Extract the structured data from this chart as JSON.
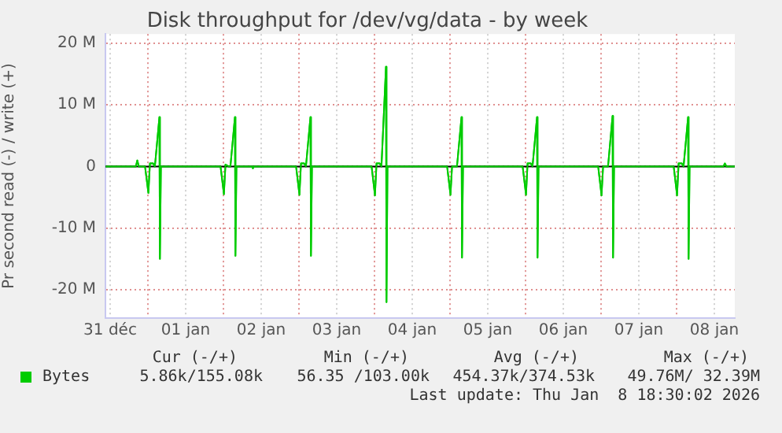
{
  "chart_data": {
    "type": "line",
    "title": "Disk throughput for /dev/vg/data - by week",
    "ylabel": "Pr second read (-) / write (+)",
    "xlim": [
      "2025-12-31T10:30",
      "2026-01-08T18:30"
    ],
    "xticks": [
      {
        "value": "2025-12-31T12:00",
        "label": "31 déc"
      },
      {
        "value": "2026-01-01T00:00",
        "label": null
      },
      {
        "value": "2026-01-01T12:00",
        "label": "01 jan"
      },
      {
        "value": "2026-01-02T00:00",
        "label": null
      },
      {
        "value": "2026-01-02T12:00",
        "label": "02 jan"
      },
      {
        "value": "2026-01-03T00:00",
        "label": null
      },
      {
        "value": "2026-01-03T12:00",
        "label": "03 jan"
      },
      {
        "value": "2026-01-04T00:00",
        "label": null
      },
      {
        "value": "2026-01-04T12:00",
        "label": "04 jan"
      },
      {
        "value": "2026-01-05T00:00",
        "label": null
      },
      {
        "value": "2026-01-05T12:00",
        "label": "05 jan"
      },
      {
        "value": "2026-01-06T00:00",
        "label": null
      },
      {
        "value": "2026-01-06T12:00",
        "label": "06 jan"
      },
      {
        "value": "2026-01-07T00:00",
        "label": null
      },
      {
        "value": "2026-01-07T12:00",
        "label": "07 jan"
      },
      {
        "value": "2026-01-08T00:00",
        "label": null
      },
      {
        "value": "2026-01-08T12:00",
        "label": "08 jan"
      }
    ],
    "ylim": [
      -24600000,
      21500000
    ],
    "yticks": [
      {
        "value": -20000000,
        "label": "-20 M"
      },
      {
        "value": -10000000,
        "label": "-10 M"
      },
      {
        "value": 0,
        "label": "0"
      },
      {
        "value": 10000000,
        "label": "10 M"
      },
      {
        "value": 20000000,
        "label": "20 M"
      }
    ],
    "grid": true,
    "legend": "bottom",
    "marker": "none",
    "ref_lines": [
      {
        "axis": "y",
        "value": 0,
        "color": "#000000"
      }
    ],
    "series": [
      {
        "name": "Bytes",
        "color": "#00cc00",
        "x": [
          "2025-12-31T10:34",
          "2025-12-31T20:10",
          "2025-12-31T20:38",
          "2025-12-31T21:07",
          "2025-12-31T23:05",
          "2026-01-01T00:09",
          "2026-01-01T00:39",
          "2026-01-01T01:39",
          "2026-01-01T02:13",
          "2026-01-01T03:39",
          "2026-01-01T03:49",
          "2026-01-01T04:08",
          "2026-01-01T23:05",
          "2026-01-02T00:09",
          "2026-01-02T00:39",
          "2026-01-02T01:39",
          "2026-01-02T02:13",
          "2026-01-02T03:39",
          "2026-01-02T03:49",
          "2026-01-02T04:08",
          "2026-01-02T09:07",
          "2026-01-02T09:22",
          "2026-01-02T09:36",
          "2026-01-02T23:05",
          "2026-01-03T00:09",
          "2026-01-03T00:39",
          "2026-01-03T01:39",
          "2026-01-03T02:13",
          "2026-01-03T03:39",
          "2026-01-03T03:49",
          "2026-01-03T04:08",
          "2026-01-03T23:05",
          "2026-01-04T00:09",
          "2026-01-04T00:39",
          "2026-01-04T01:39",
          "2026-01-04T02:13",
          "2026-01-04T03:39",
          "2026-01-04T03:49",
          "2026-01-04T04:08",
          "2026-01-04T23:05",
          "2026-01-05T00:09",
          "2026-01-05T00:39",
          "2026-01-05T01:39",
          "2026-01-05T02:13",
          "2026-01-05T03:39",
          "2026-01-05T03:49",
          "2026-01-05T04:08",
          "2026-01-05T23:05",
          "2026-01-06T00:09",
          "2026-01-06T00:39",
          "2026-01-06T01:39",
          "2026-01-06T02:13",
          "2026-01-06T03:39",
          "2026-01-06T03:49",
          "2026-01-06T04:08",
          "2026-01-06T23:05",
          "2026-01-07T00:09",
          "2026-01-07T00:39",
          "2026-01-07T01:39",
          "2026-01-07T02:13",
          "2026-01-07T03:39",
          "2026-01-07T03:49",
          "2026-01-07T04:08",
          "2026-01-07T23:05",
          "2026-01-08T00:09",
          "2026-01-08T00:39",
          "2026-01-08T01:39",
          "2026-01-08T02:13",
          "2026-01-08T03:39",
          "2026-01-08T03:49",
          "2026-01-08T04:08",
          "2026-01-08T14:53",
          "2026-01-08T15:22",
          "2026-01-08T15:50",
          "2026-01-08T18:30"
        ],
        "values": [
          0,
          0,
          1000000,
          0,
          0,
          -4300000,
          500000,
          500000,
          0,
          8000000,
          -15000000,
          0,
          0,
          -4500000,
          300000,
          0,
          0,
          8000000,
          -14500000,
          0,
          0,
          -300000,
          0,
          0,
          -4600000,
          500000,
          500000,
          0,
          8000000,
          -14500000,
          0,
          0,
          -4700000,
          500000,
          500000,
          0,
          16200000,
          -22000000,
          0,
          0,
          -4600000,
          0,
          0,
          0,
          8000000,
          -14800000,
          0,
          0,
          -4600000,
          500000,
          500000,
          0,
          8000000,
          -14800000,
          0,
          0,
          -4700000,
          0,
          0,
          0,
          8200000,
          -14800000,
          0,
          0,
          -4700000,
          500000,
          500000,
          0,
          8000000,
          -15000000,
          0,
          0,
          500000,
          0,
          0
        ]
      }
    ],
    "annotations": [
      "Cur (-/+)",
      "Min (-/+)",
      "Avg (-/+)",
      "Max (-/+)",
      "5.86k/155.08k",
      "56.35 /103.00k",
      "454.37k/374.53k",
      "49.76M/ 32.39M",
      "Last update: Thu Jan  8 18:30:02 2026"
    ]
  }
}
